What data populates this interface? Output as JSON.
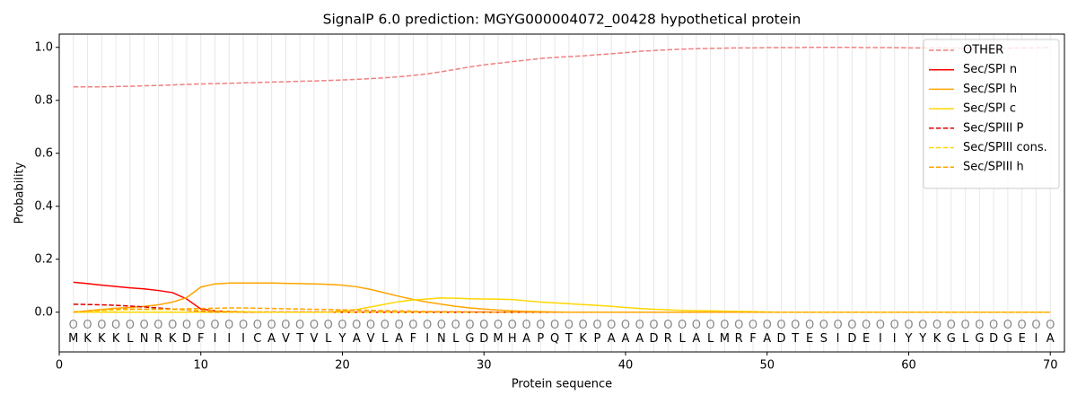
{
  "chart_data": {
    "type": "line",
    "title": "SignalP 6.0 prediction: MGYG000004072_00428 hypothetical protein",
    "x_label": "Protein sequence",
    "y_label": "Probability",
    "x": [
      1,
      2,
      3,
      4,
      5,
      6,
      7,
      8,
      9,
      10,
      11,
      12,
      13,
      14,
      15,
      16,
      17,
      18,
      19,
      20,
      21,
      22,
      23,
      24,
      25,
      26,
      27,
      28,
      29,
      30,
      31,
      32,
      33,
      34,
      35,
      36,
      37,
      38,
      39,
      40,
      41,
      42,
      43,
      44,
      45,
      46,
      47,
      48,
      49,
      50,
      51,
      52,
      53,
      54,
      55,
      56,
      57,
      58,
      59,
      60,
      61,
      62,
      63,
      64,
      65,
      66,
      67,
      68,
      69,
      70
    ],
    "sequence": [
      "M",
      "K",
      "K",
      "K",
      "L",
      "N",
      "R",
      "K",
      "D",
      "F",
      "I",
      "I",
      "I",
      "C",
      "A",
      "V",
      "T",
      "V",
      "L",
      "Y",
      "A",
      "V",
      "L",
      "A",
      "F",
      "I",
      "N",
      "L",
      "G",
      "D",
      "M",
      "H",
      "A",
      "P",
      "Q",
      "T",
      "K",
      "P",
      "A",
      "A",
      "A",
      "D",
      "R",
      "L",
      "A",
      "L",
      "M",
      "R",
      "F",
      "A",
      "D",
      "T",
      "E",
      "S",
      "I",
      "D",
      "E",
      "I",
      "I",
      "Y",
      "Y",
      "K",
      "G",
      "L",
      "G",
      "D",
      "G",
      "E",
      "I",
      "A"
    ],
    "region_labels": [
      "O",
      "O",
      "O",
      "O",
      "O",
      "O",
      "O",
      "O",
      "O",
      "O",
      "O",
      "O",
      "O",
      "O",
      "O",
      "O",
      "O",
      "O",
      "O",
      "O",
      "O",
      "O",
      "O",
      "O",
      "O",
      "O",
      "O",
      "O",
      "O",
      "O",
      "O",
      "O",
      "O",
      "O",
      "O",
      "O",
      "O",
      "O",
      "O",
      "O",
      "O",
      "O",
      "O",
      "O",
      "O",
      "O",
      "O",
      "O",
      "O",
      "O",
      "O",
      "O",
      "O",
      "O",
      "O",
      "O",
      "O",
      "O",
      "O",
      "O",
      "O",
      "O",
      "O",
      "O",
      "O",
      "O",
      "O",
      "O",
      "O",
      "O"
    ],
    "xlim": [
      0,
      71
    ],
    "ylim": [
      -0.15,
      1.05
    ],
    "xticks": [
      0,
      10,
      20,
      30,
      40,
      50,
      60,
      70
    ],
    "yticks": [
      {
        "value": 0,
        "label": "0.0"
      },
      {
        "value": 0.2,
        "label": "0.2"
      },
      {
        "value": 0.4,
        "label": "0.4"
      },
      {
        "value": 0.6,
        "label": "0.6"
      },
      {
        "value": 0.8,
        "label": "0.8"
      },
      {
        "value": 1,
        "label": "1.0"
      }
    ],
    "legend": "upper right",
    "series": [
      {
        "name": "OTHER",
        "color": "#f08080",
        "linestyle": "dashed",
        "values": [
          0.851,
          0.851,
          0.851,
          0.852,
          0.853,
          0.855,
          0.856,
          0.858,
          0.86,
          0.862,
          0.863,
          0.864,
          0.866,
          0.867,
          0.869,
          0.87,
          0.872,
          0.873,
          0.875,
          0.877,
          0.879,
          0.882,
          0.885,
          0.889,
          0.894,
          0.9,
          0.908,
          0.917,
          0.926,
          0.934,
          0.94,
          0.946,
          0.952,
          0.958,
          0.962,
          0.965,
          0.968,
          0.972,
          0.976,
          0.98,
          0.985,
          0.988,
          0.991,
          0.993,
          0.995,
          0.996,
          0.997,
          0.998,
          0.998,
          0.999,
          0.999,
          0.999,
          1,
          1,
          1,
          1,
          0.999,
          0.999,
          0.999,
          0.998,
          0.998,
          0.998,
          0.997,
          0.997,
          0.997,
          0.997,
          0.997,
          0.998,
          0.998,
          0.999
        ]
      },
      {
        "name": "Sec/SPI n",
        "color": "#ff0000",
        "linestyle": "solid",
        "values": [
          0.113,
          0.108,
          0.102,
          0.097,
          0.092,
          0.088,
          0.082,
          0.074,
          0.05,
          0.012,
          0.005,
          0.002,
          0.001,
          0,
          0,
          0,
          0,
          0,
          0,
          0,
          0,
          0,
          0,
          0,
          0,
          0,
          0,
          0,
          0,
          0,
          0,
          0,
          0,
          0,
          0,
          0,
          0,
          0,
          0,
          0,
          0,
          0,
          0,
          0,
          0,
          0,
          0,
          0,
          0,
          0,
          0,
          0,
          0,
          0,
          0,
          0,
          0,
          0,
          0,
          0,
          0,
          0,
          0,
          0,
          0,
          0,
          0,
          0,
          0,
          0
        ]
      },
      {
        "name": "Sec/SPI h",
        "color": "#ffa500",
        "linestyle": "solid",
        "values": [
          0,
          0.005,
          0.01,
          0.015,
          0.018,
          0.022,
          0.028,
          0.038,
          0.055,
          0.095,
          0.107,
          0.11,
          0.11,
          0.11,
          0.11,
          0.109,
          0.108,
          0.107,
          0.105,
          0.102,
          0.096,
          0.086,
          0.073,
          0.06,
          0.048,
          0.038,
          0.03,
          0.022,
          0.016,
          0.012,
          0.008,
          0.005,
          0.003,
          0.002,
          0.001,
          0,
          0,
          0,
          0,
          0,
          0,
          0,
          0,
          0,
          0,
          0,
          0,
          0,
          0,
          0,
          0,
          0,
          0,
          0,
          0,
          0,
          0,
          0,
          0,
          0,
          0,
          0,
          0,
          0,
          0,
          0,
          0,
          0,
          0,
          0
        ]
      },
      {
        "name": "Sec/SPI c",
        "color": "#ffd700",
        "linestyle": "solid",
        "values": [
          0,
          0,
          0,
          0,
          0,
          0,
          0,
          0,
          0,
          0,
          0,
          0,
          0,
          0,
          0,
          0,
          0,
          0,
          0,
          0.005,
          0.01,
          0.02,
          0.03,
          0.04,
          0.046,
          0.05,
          0.054,
          0.053,
          0.051,
          0.05,
          0.049,
          0.048,
          0.043,
          0.038,
          0.035,
          0.032,
          0.029,
          0.026,
          0.022,
          0.018,
          0.014,
          0.011,
          0.009,
          0.007,
          0.006,
          0.005,
          0.004,
          0.003,
          0.002,
          0.001,
          0,
          0,
          0,
          0,
          0,
          0,
          0,
          0,
          0,
          0,
          0,
          0,
          0,
          0,
          0,
          0,
          0,
          0,
          0,
          0
        ]
      },
      {
        "name": "Sec/SPIII P",
        "color": "#e00000",
        "linestyle": "dashed",
        "values": [
          0.03,
          0.029,
          0.028,
          0.026,
          0.023,
          0.02,
          0.016,
          0.012,
          0.008,
          0.005,
          0.003,
          0.002,
          0.001,
          0.001,
          0.001,
          0.001,
          0.001,
          0.001,
          0.001,
          0.001,
          0.001,
          0.001,
          0.001,
          0.001,
          0.001,
          0.001,
          0.001,
          0.001,
          0.001,
          0.001,
          0,
          0,
          0,
          0,
          0,
          0,
          0,
          0,
          0,
          0,
          0,
          0,
          0,
          0,
          0,
          0,
          0,
          0,
          0,
          0,
          0,
          0,
          0,
          0,
          0,
          0,
          0,
          0,
          0,
          0,
          0,
          0,
          0,
          0,
          0,
          0,
          0,
          0,
          0,
          0
        ]
      },
      {
        "name": "Sec/SPIII cons.",
        "color": "#ffd700",
        "linestyle": "dashed",
        "values": [
          0.002,
          0.004,
          0.006,
          0.008,
          0.01,
          0.01,
          0.01,
          0.01,
          0.009,
          0.007,
          0.005,
          0.003,
          0.002,
          0.001,
          0,
          0,
          0,
          0,
          0,
          0,
          0,
          0,
          0,
          0,
          0,
          0,
          0,
          0,
          0,
          0,
          0,
          0,
          0,
          0,
          0,
          0,
          0,
          0,
          0,
          0,
          0,
          0,
          0,
          0,
          0,
          0,
          0,
          0,
          0,
          0,
          0,
          0,
          0,
          0,
          0,
          0,
          0,
          0,
          0,
          0,
          0,
          0,
          0,
          0,
          0,
          0,
          0,
          0,
          0,
          0
        ]
      },
      {
        "name": "Sec/SPIII h",
        "color": "#ffa500",
        "linestyle": "dashed",
        "values": [
          0,
          0.005,
          0.01,
          0.012,
          0.012,
          0.012,
          0.012,
          0.012,
          0.013,
          0.014,
          0.015,
          0.016,
          0.016,
          0.015,
          0.014,
          0.013,
          0.012,
          0.011,
          0.01,
          0.009,
          0.008,
          0.007,
          0.006,
          0.005,
          0.004,
          0.003,
          0.002,
          0.002,
          0.001,
          0.001,
          0,
          0,
          0,
          0,
          0,
          0,
          0,
          0,
          0,
          0,
          0,
          0,
          0,
          0,
          0,
          0,
          0,
          0,
          0,
          0,
          0,
          0,
          0,
          0,
          0,
          0,
          0,
          0,
          0,
          0,
          0,
          0,
          0,
          0,
          0,
          0,
          0,
          0,
          0,
          0
        ]
      }
    ]
  }
}
